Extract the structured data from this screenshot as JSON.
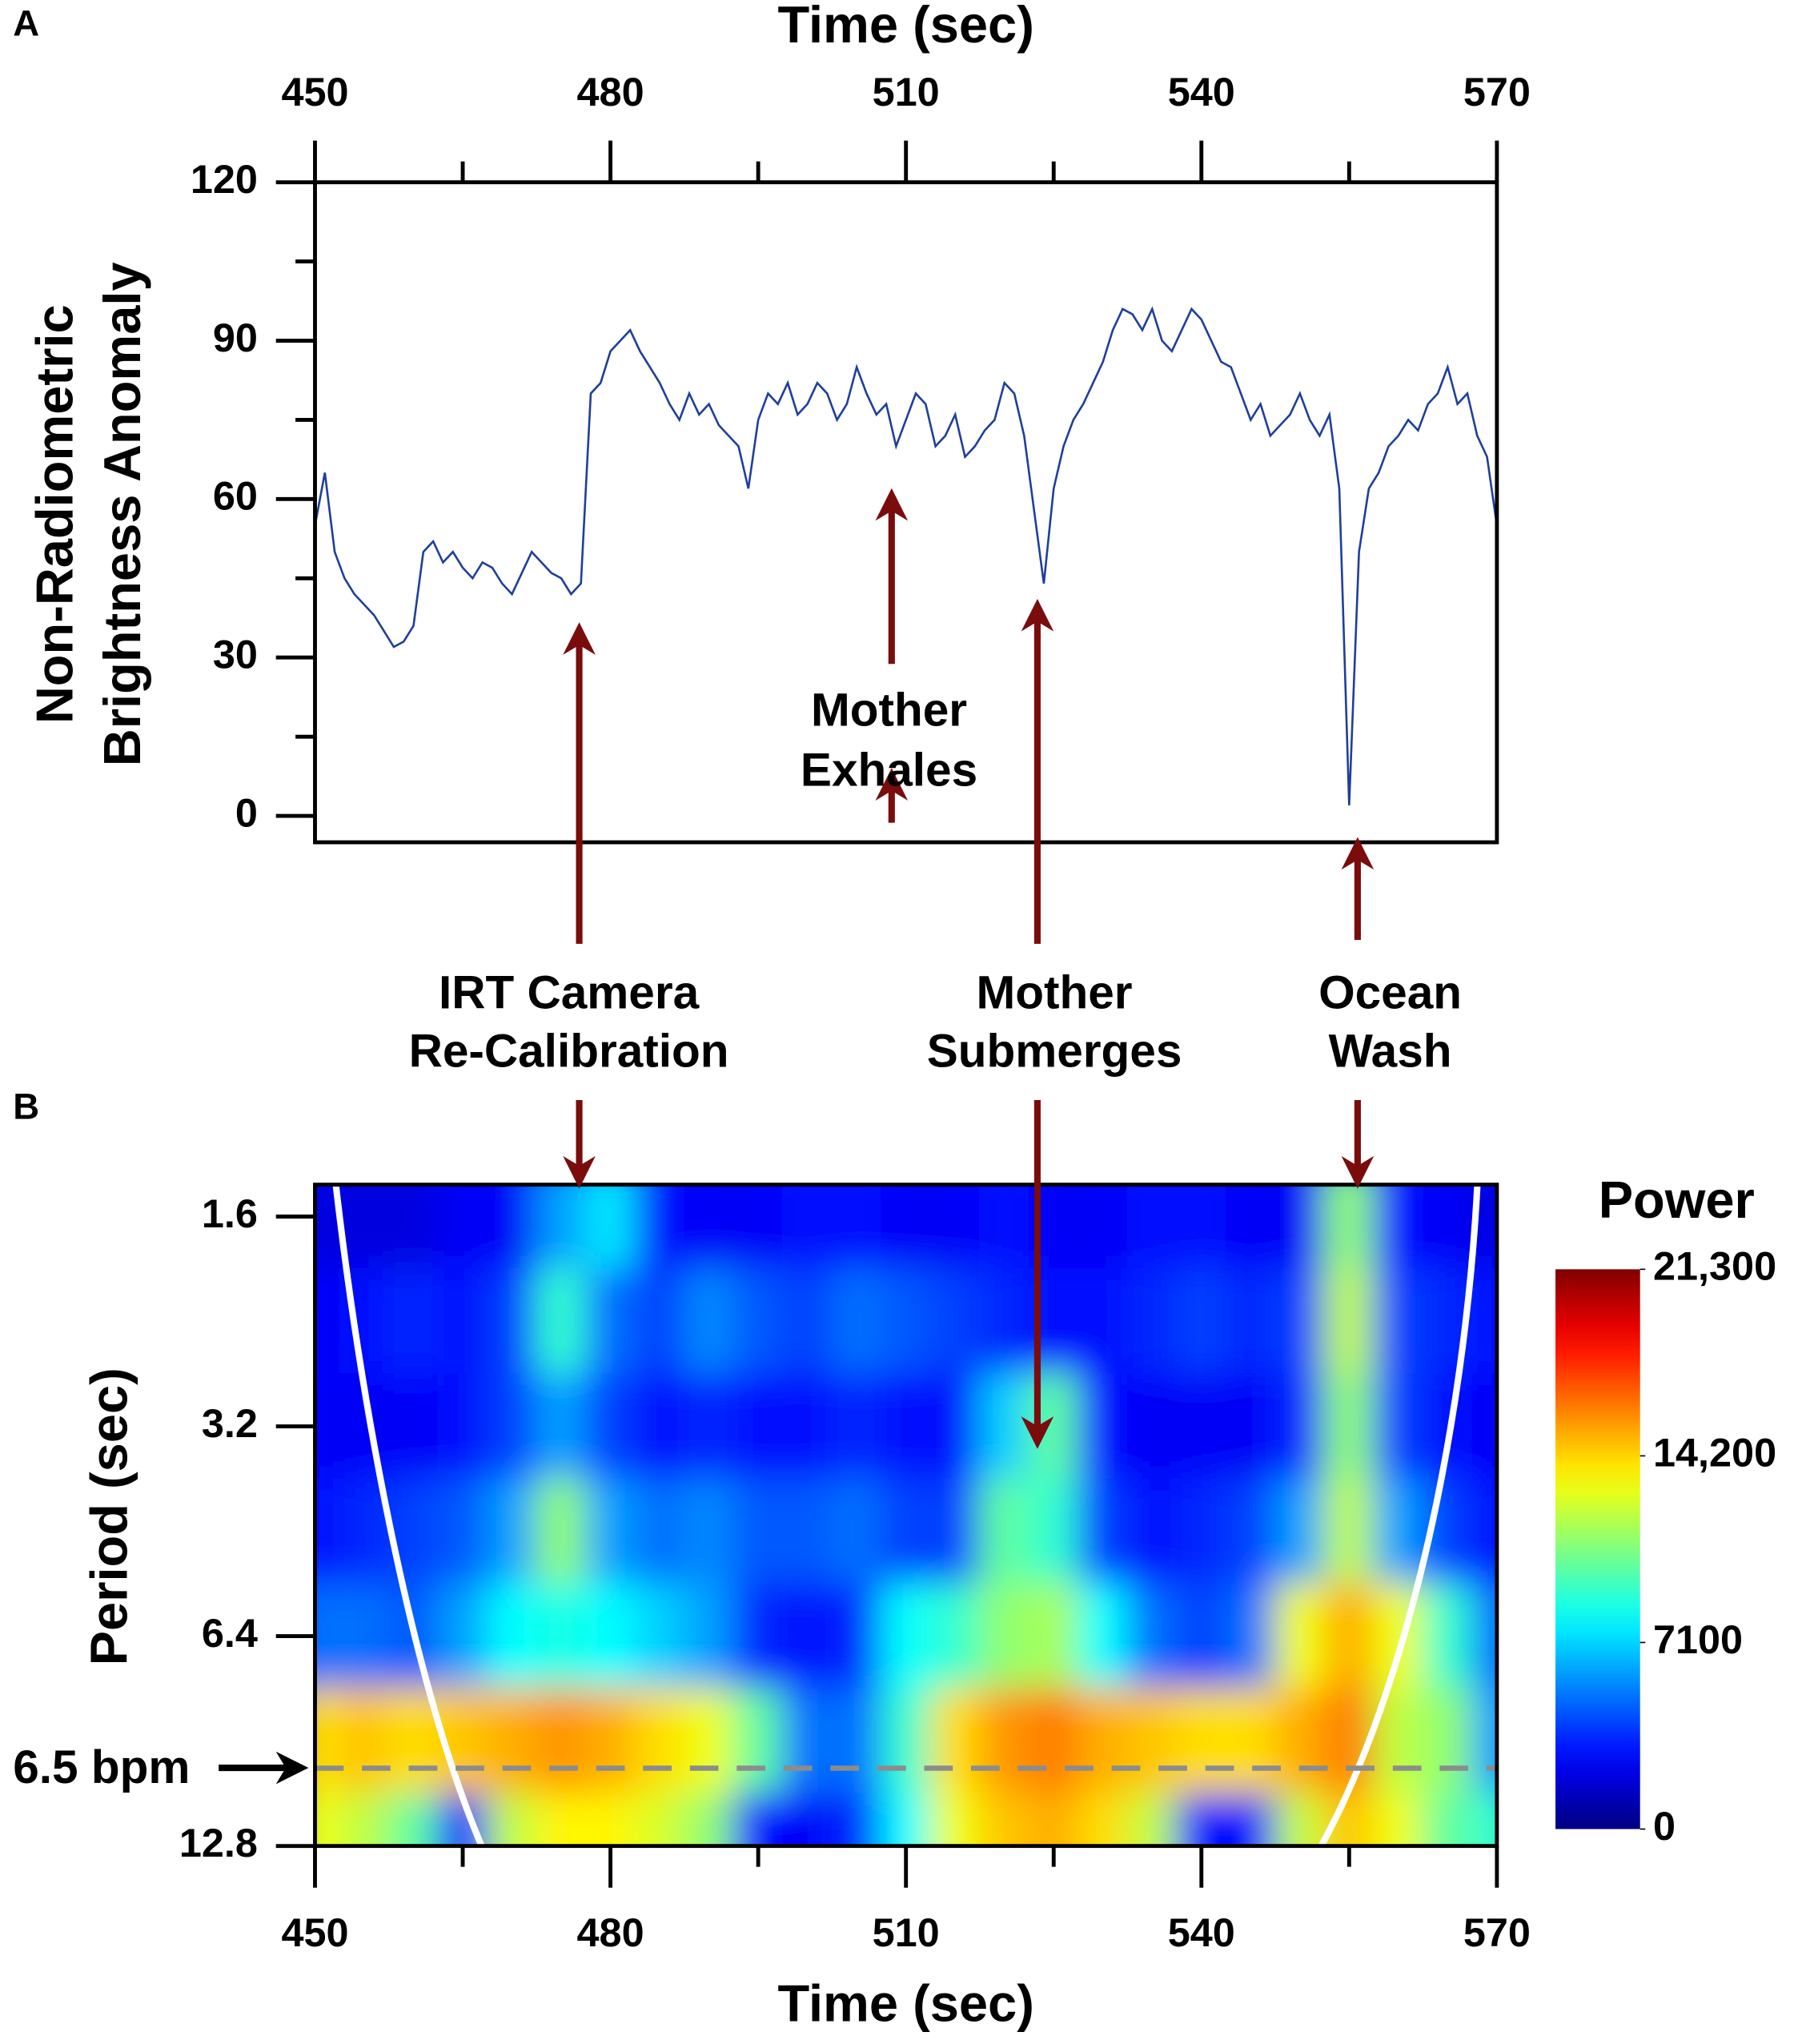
{
  "chart_data": [
    {
      "type": "line",
      "panel": "A",
      "xlabel": "Time (sec)",
      "ylabel": [
        "Non-Radiometric",
        "Brightness Anomaly"
      ],
      "color": "#1f3f9a",
      "x": [
        450,
        451,
        452,
        453,
        454,
        455,
        456,
        457,
        458,
        459,
        460,
        461,
        462,
        463,
        464,
        465,
        466,
        467,
        468,
        469,
        470,
        471,
        472,
        473,
        474,
        475,
        476,
        477,
        478,
        479,
        480,
        481,
        482,
        483,
        484,
        485,
        486,
        487,
        488,
        489,
        490,
        491,
        492,
        493,
        494,
        495,
        496,
        497,
        498,
        499,
        500,
        501,
        502,
        503,
        504,
        505,
        506,
        507,
        508,
        509,
        510,
        511,
        512,
        513,
        514,
        515,
        516,
        517,
        518,
        519,
        520,
        521,
        522,
        523,
        524,
        525,
        526,
        527,
        528,
        529,
        530,
        531,
        532,
        533,
        534,
        535,
        536,
        537,
        538,
        539,
        540,
        541,
        542,
        543,
        544,
        545,
        546,
        547,
        548,
        549,
        550,
        551,
        552,
        553,
        554,
        555,
        556,
        557,
        558,
        559,
        560,
        561,
        562,
        563,
        564,
        565,
        566,
        567,
        568,
        569,
        570
      ],
      "values": [
        55,
        65,
        50,
        45,
        42,
        40,
        38,
        35,
        32,
        33,
        36,
        50,
        52,
        48,
        50,
        47,
        45,
        48,
        47,
        44,
        42,
        46,
        50,
        48,
        46,
        45,
        42,
        44,
        80,
        82,
        88,
        90,
        92,
        88,
        85,
        82,
        78,
        75,
        80,
        76,
        78,
        74,
        72,
        70,
        62,
        75,
        80,
        78,
        82,
        76,
        78,
        82,
        80,
        75,
        78,
        85,
        80,
        76,
        78,
        70,
        75,
        80,
        78,
        70,
        72,
        76,
        68,
        70,
        73,
        75,
        82,
        80,
        72,
        58,
        44,
        62,
        70,
        75,
        78,
        82,
        86,
        92,
        96,
        95,
        92,
        96,
        90,
        88,
        92,
        96,
        94,
        90,
        86,
        85,
        80,
        75,
        78,
        72,
        74,
        76,
        80,
        75,
        72,
        76,
        62,
        2,
        50,
        62,
        65,
        70,
        72,
        75,
        73,
        78,
        80,
        85,
        78,
        80,
        72,
        68,
        55
      ],
      "xlim": [
        450,
        570
      ],
      "ylim": [
        -5,
        120
      ],
      "xticks": [
        450,
        480,
        510,
        540,
        570
      ],
      "xticks_minor": [
        465,
        495,
        525,
        555
      ],
      "yticks": [
        0,
        30,
        60,
        90,
        120
      ],
      "yticks_minor": [
        15,
        45,
        75,
        105
      ]
    },
    {
      "type": "heatmap",
      "panel": "B",
      "xlabel": "Time (sec)",
      "ylabel": "Period (sec)",
      "yscale": "log",
      "x": [
        450,
        455,
        460,
        465,
        470,
        475,
        480,
        485,
        490,
        495,
        500,
        505,
        510,
        515,
        520,
        525,
        530,
        535,
        540,
        545,
        550,
        555,
        560,
        565,
        570
      ],
      "y": [
        1.6,
        2.26,
        3.2,
        4.53,
        6.4,
        9.05,
        12.8
      ],
      "z": [
        [
          2000,
          2000,
          2000,
          2500,
          2500,
          6000,
          7500,
          3000,
          2500,
          2500,
          3000,
          3000,
          2500,
          2500,
          3000,
          2500,
          2500,
          3000,
          3000,
          2500,
          2500,
          11000,
          3000,
          2500,
          2000
        ],
        [
          2500,
          3000,
          3500,
          3000,
          4000,
          9000,
          5000,
          4000,
          5500,
          4500,
          4000,
          5000,
          4500,
          4000,
          3500,
          3000,
          3000,
          3500,
          4000,
          3500,
          4000,
          12000,
          4000,
          3500,
          3000
        ],
        [
          2500,
          2500,
          2500,
          3000,
          4000,
          6000,
          4000,
          3000,
          3500,
          3000,
          3000,
          3500,
          3000,
          3000,
          7000,
          10000,
          3000,
          2500,
          2500,
          2500,
          3500,
          11000,
          4000,
          3000,
          2500
        ],
        [
          3000,
          3500,
          4000,
          4500,
          6000,
          11000,
          6000,
          5000,
          5500,
          4500,
          4500,
          5000,
          4000,
          4000,
          10000,
          9000,
          4000,
          3000,
          3500,
          4000,
          6000,
          12000,
          6000,
          4000,
          3000
        ],
        [
          5000,
          5000,
          4500,
          6000,
          8000,
          8500,
          8000,
          7000,
          6000,
          3500,
          3000,
          3500,
          8000,
          9000,
          11000,
          11500,
          8000,
          5000,
          4000,
          5000,
          13000,
          15000,
          13000,
          9000,
          5000
        ],
        [
          14000,
          14500,
          14000,
          14500,
          15000,
          15500,
          15000,
          14000,
          13000,
          10000,
          5000,
          5000,
          9000,
          14000,
          15500,
          16000,
          15000,
          14500,
          14000,
          14000,
          15000,
          16000,
          12000,
          11000,
          6000
        ],
        [
          13000,
          12000,
          10000,
          3000,
          12000,
          13500,
          13500,
          12500,
          11000,
          3000,
          2500,
          3500,
          8000,
          13000,
          14500,
          15000,
          14000,
          12000,
          3000,
          3000,
          12000,
          14500,
          13000,
          10000,
          9000
        ]
      ],
      "xlim": [
        450,
        570
      ],
      "ylim": [
        12.8,
        1.44
      ],
      "xticks": [
        450,
        480,
        510,
        540,
        570
      ],
      "xticks_minor": [
        465,
        495,
        525,
        555
      ],
      "yticks": [
        1.6,
        3.2,
        6.4,
        12.8
      ],
      "reference_line": {
        "label": "6.5 bpm",
        "value": 9.9
      },
      "colorbar": {
        "title": "Power",
        "lim": [
          0,
          21300
        ],
        "ticks": [
          0,
          7100,
          {
            "value": 14200,
            "label": "14,200"
          },
          {
            "value": 21300,
            "label": "21,300"
          }
        ]
      }
    }
  ],
  "annotations": [
    {
      "lines": [
        "IRT Camera",
        "Re-Calibration"
      ]
    },
    {
      "lines": [
        "Mother",
        "Exhales"
      ]
    },
    {
      "lines": [
        "Mother",
        "Submerges"
      ]
    },
    {
      "lines": [
        "Ocean",
        "Wash"
      ]
    }
  ]
}
